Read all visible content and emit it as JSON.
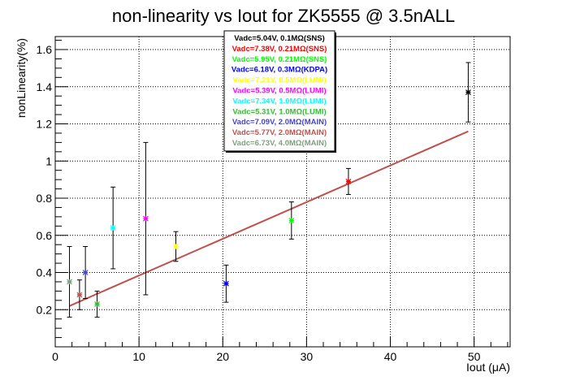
{
  "chart_data": {
    "type": "scatter",
    "title": "non-linearity vs Iout for ZK5555 @ 3.5nALL",
    "xlabel": "Iout (μA)",
    "ylabel": "nonLinearity(%)",
    "xlim": [
      0,
      54.3
    ],
    "ylim": [
      0,
      1.67
    ],
    "x_ticks": [
      0,
      10,
      20,
      30,
      40,
      50
    ],
    "x_tick_labels": [
      "0",
      "10",
      "20",
      "30",
      "40",
      "50"
    ],
    "y_ticks": [
      0.2,
      0.4,
      0.6,
      0.8,
      1.0,
      1.2,
      1.4,
      1.6
    ],
    "y_tick_labels": [
      "0.2",
      "0.4",
      "0.6",
      "0.8",
      "1",
      "1.2",
      "1.4",
      "1.6"
    ],
    "grid": true,
    "legend_placement": "top-center",
    "series": [
      {
        "name": "Vadc=5.04V, 0.1MΩ(SNS)",
        "color": "#000000",
        "x": [
          49.3
        ],
        "y": [
          1.37
        ],
        "err": [
          0.16
        ]
      },
      {
        "name": "Vadc=7.38V, 0.21MΩ(SNS)",
        "color": "#ff0000",
        "x": [
          35.0
        ],
        "y": [
          0.89
        ],
        "err": [
          0.07
        ]
      },
      {
        "name": "Vadc=5.95V, 0.21MΩ(SNS)",
        "color": "#00ff00",
        "x": [
          28.2
        ],
        "y": [
          0.68
        ],
        "err": [
          0.1
        ]
      },
      {
        "name": "Vadc=6.18V, 0.3MΩ(KDPA)",
        "color": "#0000ff",
        "x": [
          20.4
        ],
        "y": [
          0.34
        ],
        "err": [
          0.1
        ]
      },
      {
        "name": "Vadc=7.21V, 0.5MΩ(LUMI)",
        "color": "#ffff00",
        "x": [
          14.4
        ],
        "y": [
          0.54
        ],
        "err": [
          0.08
        ]
      },
      {
        "name": "Vadc=5.39V, 0.5MΩ(LUMI)",
        "color": "#ff00ff",
        "x": [
          10.8
        ],
        "y": [
          0.69
        ],
        "err": [
          0.41
        ]
      },
      {
        "name": "Vadc=7.34V, 1.0MΩ(LUMI)",
        "color": "#00ffff",
        "x": [
          6.9
        ],
        "y": [
          0.64
        ],
        "err": [
          0.22
        ]
      },
      {
        "name": "Vadc=5.31V, 1.0MΩ(LUMI)",
        "color": "#33bb33",
        "x": [
          5.0
        ],
        "y": [
          0.23
        ],
        "err": [
          0.07
        ]
      },
      {
        "name": "Vadc=7.09V, 2.0MΩ(MAIN)",
        "color": "#4444cc",
        "x": [
          3.6
        ],
        "y": [
          0.4
        ],
        "err": [
          0.14
        ]
      },
      {
        "name": "Vadc=5.77V, 2.0MΩ(MAIN)",
        "color": "#c0504d",
        "x": [
          2.9
        ],
        "y": [
          0.28
        ],
        "err": [
          0.08
        ]
      },
      {
        "name": "Vadc=6.73V, 4.0MΩ(MAIN)",
        "color": "#7f9f7f",
        "x": [
          1.7
        ],
        "y": [
          0.35
        ],
        "err": [
          0.19
        ]
      }
    ],
    "fit_line": {
      "color": "#c0504d",
      "x": [
        1.7,
        49.3
      ],
      "y": [
        0.22,
        1.16
      ]
    }
  }
}
